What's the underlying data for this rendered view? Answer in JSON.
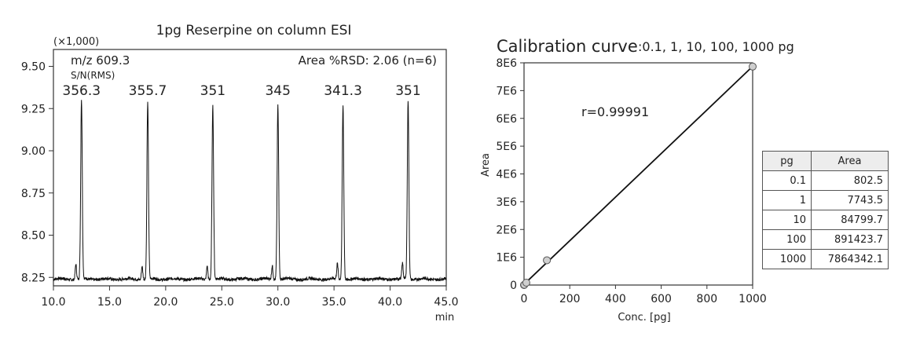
{
  "chart_data": [
    {
      "type": "line",
      "title": "1pg Reserpine on column ESI",
      "y_multiplier": "(×1,000)",
      "xlabel": "min",
      "ylabel": "",
      "xlim": [
        10.0,
        45.0
      ],
      "ylim": [
        8.2,
        9.6
      ],
      "x_ticks": [
        "10.0",
        "15.0",
        "20.0",
        "25.0",
        "30.0",
        "35.0",
        "40.0",
        "45.0"
      ],
      "y_ticks": [
        "8.25",
        "8.50",
        "8.75",
        "9.00",
        "9.25",
        "9.50"
      ],
      "annotations": {
        "mz": "m/z 609.3",
        "sn": "S/N(RMS)",
        "rsd": "Area %RSD: 2.06 (n=6)"
      },
      "baseline": 8.24,
      "peaks": [
        {
          "x": 12.5,
          "y": 9.3,
          "label": "356.3",
          "minor_x": 12.0,
          "minor_y": 8.33
        },
        {
          "x": 18.4,
          "y": 9.28,
          "label": "355.7",
          "minor_x": 17.9,
          "minor_y": 8.32
        },
        {
          "x": 24.2,
          "y": 9.28,
          "label": "351",
          "minor_x": 23.7,
          "minor_y": 8.32
        },
        {
          "x": 30.0,
          "y": 9.27,
          "label": "345",
          "minor_x": 29.5,
          "minor_y": 8.32
        },
        {
          "x": 35.8,
          "y": 9.27,
          "label": "341.3",
          "minor_x": 35.3,
          "minor_y": 8.33
        },
        {
          "x": 41.6,
          "y": 9.3,
          "label": "351",
          "minor_x": 41.1,
          "minor_y": 8.33
        }
      ]
    },
    {
      "type": "scatter",
      "title": "Calibration curve",
      "subtitle": ":0.1, 1, 10, 100, 1000 pg",
      "xlabel": "Conc. [pg]",
      "ylabel": "Area",
      "xlim": [
        0,
        1000
      ],
      "ylim": [
        0,
        8000000
      ],
      "x_ticks": [
        "0",
        "200",
        "400",
        "600",
        "800",
        "1000"
      ],
      "y_ticks": [
        "0",
        "1E6",
        "2E6",
        "3E6",
        "4E6",
        "5E6",
        "6E6",
        "7E6",
        "8E6"
      ],
      "annotation": "r=0.99991",
      "fit_line": true,
      "points": [
        {
          "x": 0.1,
          "y": 802.5
        },
        {
          "x": 1,
          "y": 7743.5
        },
        {
          "x": 10,
          "y": 84799.7
        },
        {
          "x": 100,
          "y": 891423.7
        },
        {
          "x": 1000,
          "y": 7864342.1
        }
      ],
      "table": {
        "headers": [
          "pg",
          "Area"
        ],
        "rows": [
          [
            "0.1",
            "802.5"
          ],
          [
            "1",
            "7743.5"
          ],
          [
            "10",
            "84799.7"
          ],
          [
            "100",
            "891423.7"
          ],
          [
            "1000",
            "7864342.1"
          ]
        ]
      }
    }
  ]
}
